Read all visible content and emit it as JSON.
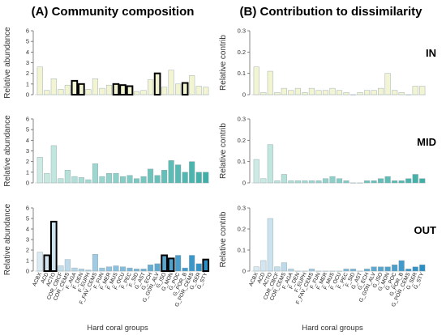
{
  "figure": {
    "panel_a_title": "(A) Community composition",
    "panel_b_title": "(B) Contribution to dissimilarity",
    "xlabel": "Hard coral groups",
    "ylabel_a": "Relative abundance",
    "ylabel_b": "Relative contrib"
  },
  "colors": {
    "IN": "#f2f4d2",
    "MID": "#a8dccb",
    "OUT_start": "#dbe9f2",
    "OUT_end": "#2c8fc4",
    "axis": "#666666",
    "highlight": "#000000"
  },
  "chart_data": {
    "type": "bar",
    "categories": [
      "ACBX",
      "ACD",
      "ACTO",
      "COR_CBCF",
      "COR_CEMS",
      "F_AGA",
      "F_DEN",
      "F_EUPH",
      "F_FAV_CEMS",
      "F_FUN",
      "F_MER",
      "F_MUS",
      "F_OCU",
      "F_PEC",
      "F_SID",
      "G_AST",
      "G_ECH",
      "G_GON_ALV",
      "G_ISO",
      "G_MON",
      "G_POC",
      "G_POR_B",
      "G_POR_CEMS",
      "G_SER",
      "G_STY"
    ],
    "panels": [
      {
        "id": "A",
        "title": "(A) Community composition",
        "ylabel": "Relative abundance",
        "ylim": [
          0,
          6
        ],
        "yticks": [
          0,
          1,
          2,
          3,
          4,
          5,
          6
        ],
        "rows": [
          {
            "site": "IN",
            "values": [
              2.6,
              0.4,
              1.5,
              0.5,
              0.9,
              1.3,
              1.0,
              0.5,
              1.5,
              0.6,
              0.9,
              1.0,
              0.9,
              0.8,
              0.3,
              0.4,
              1.4,
              2.0,
              0.7,
              2.3,
              1.0,
              1.1,
              1.8,
              0.8,
              0.7
            ],
            "highlighted": [
              5,
              6,
              11,
              12,
              13,
              17,
              21
            ]
          },
          {
            "site": "MID",
            "values": [
              2.4,
              0.9,
              3.5,
              0.4,
              1.2,
              0.6,
              0.5,
              0.3,
              1.8,
              0.6,
              0.9,
              0.9,
              0.6,
              0.7,
              0.4,
              0.6,
              1.3,
              0.7,
              1.2,
              2.1,
              1.7,
              1.0,
              2.0,
              1.0,
              1.0
            ],
            "highlighted": []
          },
          {
            "site": "OUT",
            "values": [
              1.8,
              1.5,
              4.7,
              0.5,
              1.1,
              0.3,
              0.2,
              0.1,
              1.6,
              0.3,
              0.4,
              0.5,
              0.4,
              0.3,
              0.2,
              0.2,
              0.6,
              0.7,
              1.5,
              1.2,
              1.5,
              0.3,
              1.5,
              0.7,
              1.1
            ],
            "highlighted": [
              1,
              2,
              18,
              19,
              24
            ]
          }
        ]
      },
      {
        "id": "B",
        "title": "(B) Contribution to dissimilarity",
        "ylabel": "Relative contrib",
        "ylim": [
          0,
          0.3
        ],
        "yticks": [
          0,
          0.1,
          0.2,
          0.3
        ],
        "rows": [
          {
            "site": "IN",
            "values": [
              0.13,
              0.01,
              0.11,
              0.01,
              0.03,
              0.02,
              0.03,
              0.01,
              0.03,
              0.02,
              0.02,
              0.03,
              0.02,
              0.01,
              0.0,
              0.01,
              0.02,
              0.02,
              0.03,
              0.1,
              0.02,
              0.01,
              0.0,
              0.04,
              0.04
            ]
          },
          {
            "site": "MID",
            "values": [
              0.11,
              0.02,
              0.18,
              0.01,
              0.04,
              0.01,
              0.01,
              0.01,
              0.01,
              0.01,
              0.02,
              0.03,
              0.02,
              0.01,
              0.0,
              0.0,
              0.01,
              0.01,
              0.02,
              0.03,
              0.01,
              0.01,
              0.02,
              0.04,
              0.02
            ]
          },
          {
            "site": "OUT",
            "values": [
              0.02,
              0.05,
              0.25,
              0.02,
              0.04,
              0.01,
              0.0,
              0.0,
              0.01,
              0.0,
              0.0,
              0.0,
              0.0,
              0.01,
              0.01,
              0.0,
              0.01,
              0.02,
              0.02,
              0.02,
              0.03,
              0.05,
              0.01,
              0.02,
              0.03
            ]
          }
        ]
      }
    ]
  }
}
